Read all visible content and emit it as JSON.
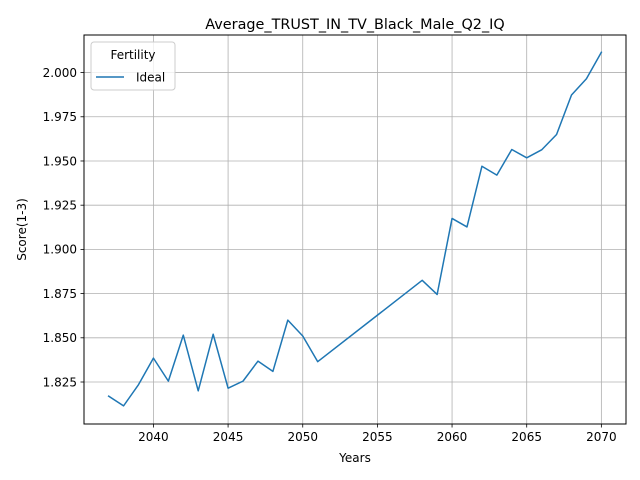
{
  "chart_data": {
    "type": "line",
    "title": "Average_TRUST_IN_TV_Black_Male_Q2_IQ",
    "xlabel": "Years",
    "ylabel": "Score(1-3)",
    "xlim": [
      2035.35,
      2071.65
    ],
    "ylim": [
      1.80125,
      2.02125
    ],
    "xticks": [
      2040,
      2045,
      2050,
      2055,
      2060,
      2065,
      2070
    ],
    "yticks": [
      1.825,
      1.85,
      1.875,
      1.9,
      1.925,
      1.95,
      1.975,
      2.0
    ],
    "xtick_labels": [
      "2040",
      "2045",
      "2050",
      "2055",
      "2060",
      "2065",
      "2070"
    ],
    "ytick_labels": [
      "1.825",
      "1.850",
      "1.875",
      "1.900",
      "1.925",
      "1.950",
      "1.975",
      "2.000"
    ],
    "grid": true,
    "legend": {
      "title": "Fertility",
      "placement": "upper-left"
    },
    "colors": {
      "series": "#1f77b4",
      "grid": "#b0b0b0"
    },
    "series": [
      {
        "name": "Ideal",
        "x": [
          2037,
          2038,
          2039,
          2040,
          2041,
          2042,
          2043,
          2044,
          2045,
          2046,
          2047,
          2048,
          2049,
          2050,
          2051,
          2058,
          2059,
          2060,
          2061,
          2062,
          2063,
          2064,
          2065,
          2066,
          2067,
          2068,
          2069,
          2070
        ],
        "values": [
          1.817,
          1.8115,
          1.8235,
          1.8385,
          1.8255,
          1.8515,
          1.82,
          1.852,
          1.8215,
          1.8255,
          1.8368,
          1.831,
          1.86,
          1.851,
          1.8365,
          1.8825,
          1.8745,
          1.9175,
          1.9127,
          1.947,
          1.942,
          1.9565,
          1.9518,
          1.9563,
          1.965,
          1.9873,
          1.9965,
          2.0115
        ]
      }
    ]
  }
}
